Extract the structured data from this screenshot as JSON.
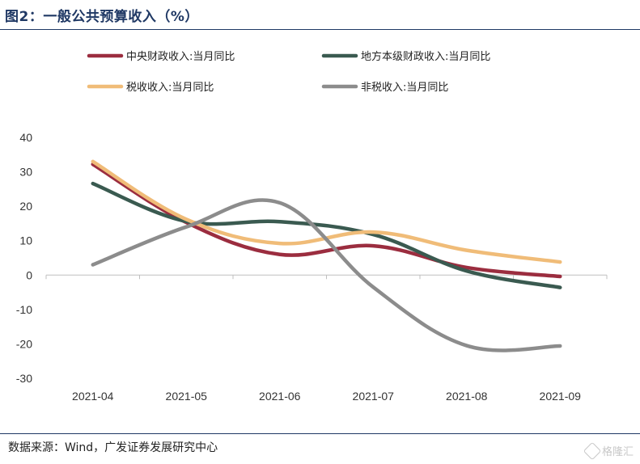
{
  "title": "图2：一般公共预算收入（%）",
  "source": "数据来源：Wind，广发证券发展研究中心",
  "watermark": {
    "text": "格隆汇",
    "icon": "glh-logo-icon"
  },
  "chart_data": {
    "type": "line",
    "title": "",
    "xlabel": "",
    "ylabel": "",
    "categories": [
      "2021-04",
      "2021-05",
      "2021-06",
      "2021-07",
      "2021-08",
      "2021-09"
    ],
    "ylim": [
      -30,
      40
    ],
    "yticks": [
      40,
      30,
      20,
      10,
      0,
      -10,
      -20,
      -30
    ],
    "grid": false,
    "legend": "top",
    "series": [
      {
        "name": "中央财政收入:当月同比",
        "color": "#9b2d3f",
        "values": [
          32.2,
          15.3,
          6.0,
          8.5,
          2.2,
          -0.4
        ]
      },
      {
        "name": "地方本级财政收入:当月同比",
        "color": "#3a5a50",
        "values": [
          26.6,
          15.6,
          15.5,
          11.8,
          1.2,
          -3.6
        ]
      },
      {
        "name": "税收收入:当月同比",
        "color": "#f0bc78",
        "values": [
          33.0,
          16.2,
          9.2,
          12.5,
          7.2,
          3.8
        ]
      },
      {
        "name": "非税收入:当月同比",
        "color": "#8c8c8c",
        "values": [
          3.0,
          14.0,
          21.0,
          -3.5,
          -20.5,
          -20.6
        ]
      }
    ]
  }
}
